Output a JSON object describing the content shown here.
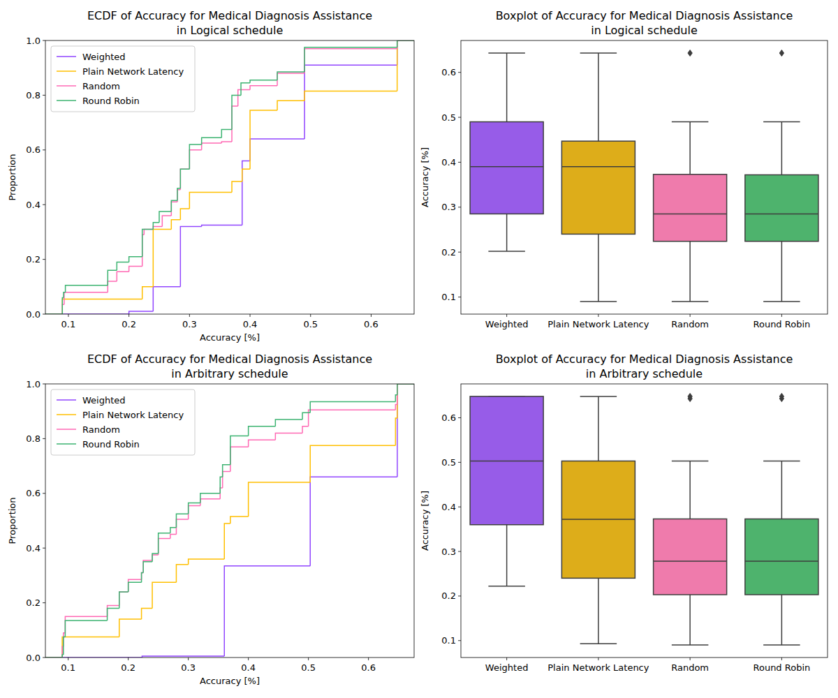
{
  "chart_data": [
    {
      "type": "ecdf",
      "title": "ECDF of Accuracy for Medical Diagnosis Assistance\nin Logical schedule",
      "x_label": "Accuracy [%]",
      "y_label": "Proportion",
      "xlim": [
        0.062,
        0.671
      ],
      "ylim": [
        0,
        1
      ],
      "xticks": [
        0.1,
        0.2,
        0.3,
        0.4,
        0.5,
        0.6
      ],
      "yticks": [
        {
          "value": 0,
          "label": "0.0"
        },
        0.2,
        0.4,
        0.6,
        0.8,
        {
          "value": 1,
          "label": "1.0"
        }
      ],
      "grid": false,
      "legend": "upper left",
      "series": [
        {
          "name": "Weighted",
          "color": "#9146ff",
          "x": [
            0.2,
            0.24,
            0.285,
            0.32,
            0.387,
            0.4,
            0.49,
            0.643
          ],
          "values": [
            0.01,
            0.1,
            0.32,
            0.325,
            0.56,
            0.64,
            0.91,
            1.0
          ]
        },
        {
          "name": "Plain Network Latency",
          "color": "#ffbf00",
          "x": [
            0.09,
            0.222,
            0.24,
            0.27,
            0.285,
            0.3,
            0.37,
            0.387,
            0.4,
            0.445,
            0.49,
            0.643
          ],
          "values": [
            0.055,
            0.1,
            0.31,
            0.345,
            0.385,
            0.445,
            0.485,
            0.53,
            0.745,
            0.78,
            0.815,
            1.0
          ]
        },
        {
          "name": "Random",
          "color": "#ff69b4",
          "x": [
            0.09,
            0.093,
            0.165,
            0.18,
            0.2,
            0.222,
            0.225,
            0.24,
            0.255,
            0.27,
            0.28,
            0.285,
            0.3,
            0.32,
            0.353,
            0.37,
            0.38,
            0.4,
            0.445,
            0.49,
            0.643
          ],
          "values": [
            0.035,
            0.08,
            0.12,
            0.155,
            0.175,
            0.29,
            0.31,
            0.32,
            0.36,
            0.41,
            0.455,
            0.53,
            0.6,
            0.625,
            0.63,
            0.76,
            0.82,
            0.835,
            0.88,
            0.97,
            1.0
          ]
        },
        {
          "name": "Round Robin",
          "color": "#3cb371",
          "x": [
            0.09,
            0.092,
            0.095,
            0.165,
            0.18,
            0.2,
            0.222,
            0.24,
            0.25,
            0.27,
            0.28,
            0.285,
            0.3,
            0.32,
            0.353,
            0.37,
            0.385,
            0.4,
            0.445,
            0.49,
            0.643
          ],
          "values": [
            0.06,
            0.08,
            0.105,
            0.16,
            0.19,
            0.21,
            0.31,
            0.335,
            0.375,
            0.415,
            0.46,
            0.53,
            0.62,
            0.645,
            0.675,
            0.8,
            0.845,
            0.855,
            0.885,
            0.975,
            1.0
          ]
        }
      ]
    },
    {
      "type": "box",
      "title": "Boxplot of Accuracy for Medical Diagnosis Assistance\nin Logical schedule",
      "y_label": "Accuracy [%]",
      "ylim": [
        0.062,
        0.671
      ],
      "yticks": [
        0.1,
        0.2,
        0.3,
        0.4,
        0.5,
        0.6
      ],
      "grid": false,
      "categories": [
        "Weighted",
        "Plain Network Latency",
        "Random",
        "Round Robin"
      ],
      "colors": [
        "#975ce8",
        "#ddad1a",
        "#ef7bac",
        "#4eb36d"
      ],
      "boxes": [
        {
          "min": 0.202,
          "q1": 0.285,
          "median": 0.39,
          "q3": 0.49,
          "max": 0.643,
          "outliers": []
        },
        {
          "min": 0.09,
          "q1": 0.24,
          "median": 0.39,
          "q3": 0.447,
          "max": 0.643,
          "outliers": []
        },
        {
          "min": 0.09,
          "q1": 0.224,
          "median": 0.285,
          "q3": 0.373,
          "max": 0.49,
          "outliers": [
            0.643
          ]
        },
        {
          "min": 0.09,
          "q1": 0.224,
          "median": 0.285,
          "q3": 0.372,
          "max": 0.49,
          "outliers": [
            0.643
          ]
        }
      ]
    },
    {
      "type": "ecdf",
      "title": "ECDF of Accuracy for Medical Diagnosis Assistance\nin Arbitrary schedule",
      "x_label": "Accuracy [%]",
      "y_label": "Proportion",
      "xlim": [
        0.062,
        0.676
      ],
      "ylim": [
        0,
        1
      ],
      "xticks": [
        0.1,
        0.2,
        0.3,
        0.4,
        0.5,
        0.6
      ],
      "yticks": [
        {
          "value": 0,
          "label": "0.0"
        },
        0.2,
        0.4,
        0.6,
        0.8,
        {
          "value": 1,
          "label": "1.0"
        }
      ],
      "grid": false,
      "legend": "upper left",
      "series": [
        {
          "name": "Weighted",
          "color": "#9146ff",
          "x": [
            0.223,
            0.36,
            0.503,
            0.648
          ],
          "values": [
            0.005,
            0.335,
            0.66,
            1.0
          ]
        },
        {
          "name": "Plain Network Latency",
          "color": "#ffbf00",
          "x": [
            0.09,
            0.185,
            0.222,
            0.24,
            0.28,
            0.3,
            0.36,
            0.37,
            0.4,
            0.503,
            0.645,
            0.648
          ],
          "values": [
            0.075,
            0.14,
            0.18,
            0.275,
            0.34,
            0.36,
            0.49,
            0.515,
            0.64,
            0.775,
            0.875,
            1.0
          ]
        },
        {
          "name": "Random",
          "color": "#ff69b4",
          "x": [
            0.09,
            0.092,
            0.095,
            0.165,
            0.185,
            0.2,
            0.222,
            0.225,
            0.24,
            0.25,
            0.27,
            0.28,
            0.3,
            0.32,
            0.353,
            0.357,
            0.37,
            0.4,
            0.445,
            0.49,
            0.5,
            0.645,
            0.648
          ],
          "values": [
            0.04,
            0.09,
            0.15,
            0.19,
            0.24,
            0.285,
            0.31,
            0.355,
            0.375,
            0.435,
            0.45,
            0.505,
            0.555,
            0.58,
            0.62,
            0.68,
            0.77,
            0.795,
            0.82,
            0.845,
            0.905,
            0.925,
            1.0
          ]
        },
        {
          "name": "Round Robin",
          "color": "#3cb371",
          "x": [
            0.09,
            0.092,
            0.095,
            0.165,
            0.185,
            0.2,
            0.222,
            0.225,
            0.24,
            0.25,
            0.27,
            0.28,
            0.3,
            0.32,
            0.353,
            0.357,
            0.37,
            0.4,
            0.445,
            0.49,
            0.503,
            0.645,
            0.648
          ],
          "values": [
            0.01,
            0.075,
            0.135,
            0.18,
            0.24,
            0.275,
            0.31,
            0.35,
            0.38,
            0.455,
            0.475,
            0.525,
            0.565,
            0.6,
            0.66,
            0.705,
            0.81,
            0.845,
            0.87,
            0.895,
            0.935,
            0.96,
            1.0
          ]
        }
      ]
    },
    {
      "type": "box",
      "title": "Boxplot of Accuracy for Medical Diagnosis Assistance\nin Arbitrary schedule",
      "y_label": "Accuracy [%]",
      "ylim": [
        0.062,
        0.676
      ],
      "yticks": [
        0.1,
        0.2,
        0.3,
        0.4,
        0.5,
        0.6
      ],
      "grid": false,
      "categories": [
        "Weighted",
        "Plain Network Latency",
        "Random",
        "Round Robin"
      ],
      "colors": [
        "#975ce8",
        "#ddad1a",
        "#ef7bac",
        "#4eb36d"
      ],
      "boxes": [
        {
          "min": 0.222,
          "q1": 0.36,
          "median": 0.503,
          "q3": 0.648,
          "max": 0.648,
          "outliers": []
        },
        {
          "min": 0.093,
          "q1": 0.24,
          "median": 0.372,
          "q3": 0.503,
          "max": 0.648,
          "outliers": []
        },
        {
          "min": 0.09,
          "q1": 0.203,
          "median": 0.278,
          "q3": 0.373,
          "max": 0.503,
          "outliers": [
            0.643,
            0.648
          ]
        },
        {
          "min": 0.09,
          "q1": 0.203,
          "median": 0.278,
          "q3": 0.373,
          "max": 0.503,
          "outliers": [
            0.643,
            0.648
          ]
        }
      ]
    }
  ]
}
